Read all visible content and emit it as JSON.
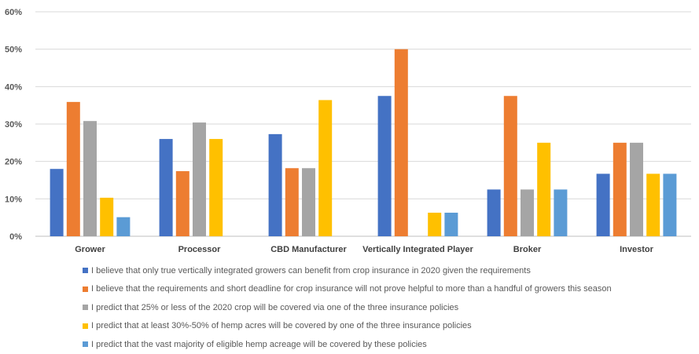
{
  "chart_data": {
    "type": "bar",
    "categories": [
      "Grower",
      "Processor",
      "CBD Manufacturer",
      "Vertically Integrated Player",
      "Broker",
      "Investor"
    ],
    "series": [
      {
        "name": "I believe that only true vertically integrated growers can benefit from crop insurance in 2020 given the requirements",
        "color": "#4472C4",
        "values": [
          18,
          26,
          27.3,
          37.5,
          12.5,
          16.7
        ]
      },
      {
        "name": "I believe that the requirements and short deadline for crop insurance will not prove helpful to more than a handful of growers this season",
        "color": "#ED7D31",
        "values": [
          35.9,
          17.4,
          18.2,
          50,
          37.5,
          25
        ]
      },
      {
        "name": "I predict that 25% or less of the 2020 crop will be covered via one of the three insurance policies",
        "color": "#A5A5A5",
        "values": [
          30.8,
          30.4,
          18.2,
          0,
          12.5,
          25
        ]
      },
      {
        "name": "I predict that at least 30%-50% of hemp acres will be covered by one of the three insurance policies",
        "color": "#FFC000",
        "values": [
          10.3,
          26,
          36.4,
          6.3,
          25,
          16.7
        ]
      },
      {
        "name": "I predict that the vast majority of eligible hemp acreage will be covered by these policies",
        "color": "#5B9BD5",
        "values": [
          5.1,
          0,
          0,
          6.3,
          12.5,
          16.7
        ]
      }
    ],
    "ylim": [
      0,
      60
    ],
    "yticks": [
      "0%",
      "10%",
      "20%",
      "30%",
      "40%",
      "50%",
      "60%"
    ],
    "grid": true,
    "legend_position": "bottom"
  }
}
